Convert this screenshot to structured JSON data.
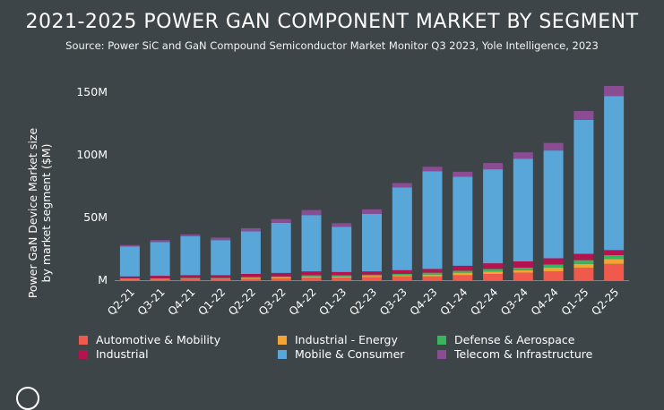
{
  "chart_data": {
    "type": "stacked-bar",
    "title": "2021-2025 POWER GAN COMPONENT MARKET BY SEGMENT",
    "subtitle": "Source: Power SiC and GaN Compound Semiconductor Market Monitor Q3 2023, Yole Intelligence, 2023",
    "ylabel": "Power GaN Device Market size by market segment ($M)",
    "ylabel_lines": [
      "Power GaN Device Market size",
      "by market segment ($M)"
    ],
    "ylim": [
      0,
      160
    ],
    "yticks": [
      0,
      50,
      100,
      150
    ],
    "ytick_labels": [
      "M",
      "50M",
      "100M",
      "150M"
    ],
    "categories": [
      "Q2-21",
      "Q3-21",
      "Q4-21",
      "Q1-22",
      "Q2-22",
      "Q3-22",
      "Q4-22",
      "Q1-23",
      "Q2-23",
      "Q3-23",
      "Q4-23",
      "Q1-24",
      "Q2-24",
      "Q3-24",
      "Q4-24",
      "Q1-25",
      "Q2-25"
    ],
    "series": [
      {
        "name": "Automotive & Mobility",
        "color": "#ef5a4c",
        "values": [
          0.5,
          0.5,
          0.8,
          0.8,
          1,
          1.5,
          2,
          2,
          2.5,
          3,
          3,
          4,
          5,
          6,
          7,
          10,
          13
        ]
      },
      {
        "name": "Industrial - Energy",
        "color": "#f3a435",
        "values": [
          0.5,
          0.5,
          0.5,
          0.5,
          1,
          1,
          1,
          1,
          1,
          1,
          1.5,
          2,
          2,
          2,
          3,
          3,
          4
        ]
      },
      {
        "name": "Defense & Aerospace",
        "color": "#3bb55b",
        "values": [
          0.5,
          0.5,
          0.5,
          0.5,
          0.5,
          0.5,
          1,
          1,
          1,
          1,
          1.5,
          1.5,
          2,
          2,
          2.5,
          3,
          3
        ]
      },
      {
        "name": "Industrial",
        "color": "#b5134f",
        "values": [
          1.5,
          2,
          2.2,
          2.2,
          2.5,
          2.8,
          3,
          2.5,
          2.5,
          3,
          3,
          4,
          4.5,
          5,
          5,
          5,
          4
        ]
      },
      {
        "name": "Mobile & Consumer",
        "color": "#59a6d9",
        "values": [
          24,
          27,
          31,
          28,
          34,
          40,
          45,
          36,
          46,
          66,
          78,
          71,
          75,
          82,
          86,
          107,
          123
        ]
      },
      {
        "name": "Telecom & Infrastructure",
        "color": "#8a4d94",
        "values": [
          1,
          1.5,
          1.5,
          2,
          2.5,
          3,
          4,
          3,
          3.5,
          3.5,
          3.5,
          4,
          5,
          5,
          6,
          7,
          8
        ]
      }
    ]
  }
}
